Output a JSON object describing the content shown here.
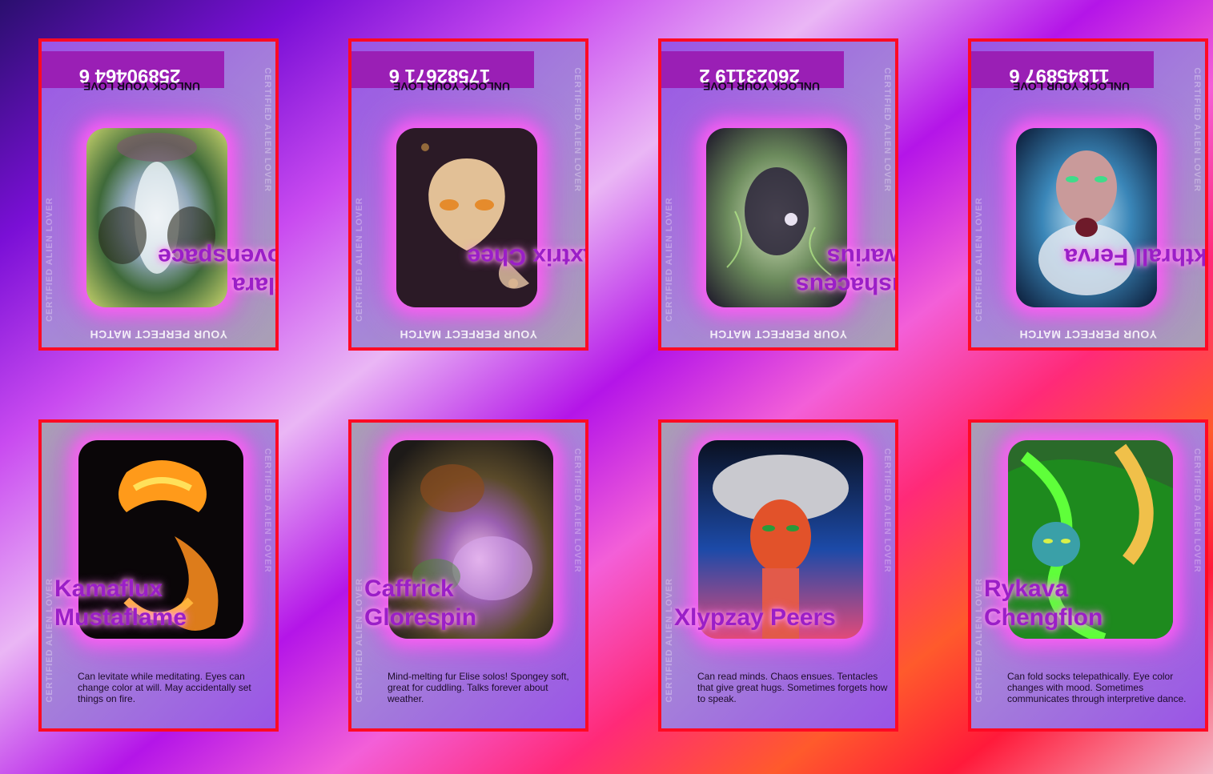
{
  "cards": [
    {
      "name": "Xylara Wovenspace",
      "flipped": true,
      "code": "25890464 6",
      "match": "YOUR PERFECT MATCH",
      "unlock": "UNLOCK YOUR LOVE",
      "certified": "CERTIFIED ALIEN LOVER"
    },
    {
      "name": "Daxtrix Chee",
      "flipped": true,
      "code": "17582671 6",
      "match": "YOUR PERFECT MATCH",
      "unlock": "UNLOCK YOUR LOVE",
      "certified": "CERTIFIED ALIEN LOVER"
    },
    {
      "name": "Kushaceus Tiwarius",
      "flipped": true,
      "code": "26023119 2",
      "match": "YOUR PERFECT MATCH",
      "unlock": "UNLOCK YOUR LOVE",
      "certified": "CERTIFIED ALIEN LOVER"
    },
    {
      "name": "Mikthrall Ferva",
      "flipped": true,
      "code": "11845897 6",
      "match": "YOUR PERFECT MATCH",
      "unlock": "UNLOCK YOUR LOVE",
      "certified": "CERTIFIED ALIEN LOVER"
    },
    {
      "name": "Kamaflux Mustaflame",
      "flipped": false,
      "bio": "Can levitate while meditating. Eyes can change color at will. May accidentally set things on fire.",
      "certified": "CERTIFIED ALIEN LOVER"
    },
    {
      "name": "Caffrick Glorespin",
      "flipped": false,
      "bio": "Mind-melting fur Elise solos! Spongey soft, great for cuddling. Talks forever about weather.",
      "certified": "CERTIFIED ALIEN LOVER"
    },
    {
      "name": "Xlypzay Peers",
      "flipped": false,
      "bio": "Can read minds. Chaos ensues. Tentacles that give great hugs. Sometimes forgets how to speak.",
      "certified": "CERTIFIED ALIEN LOVER"
    },
    {
      "name": "Rykava Chengflon",
      "flipped": false,
      "bio": "Can fold socks telepathically. Eye color changes with mood. Sometimes communicates through interpretive dance.",
      "certified": "CERTIFIED ALIEN LOVER"
    }
  ],
  "colors": {
    "border": "#ff0a24",
    "name": "#9a1fc7",
    "code_bar": "#9a1fb5"
  }
}
